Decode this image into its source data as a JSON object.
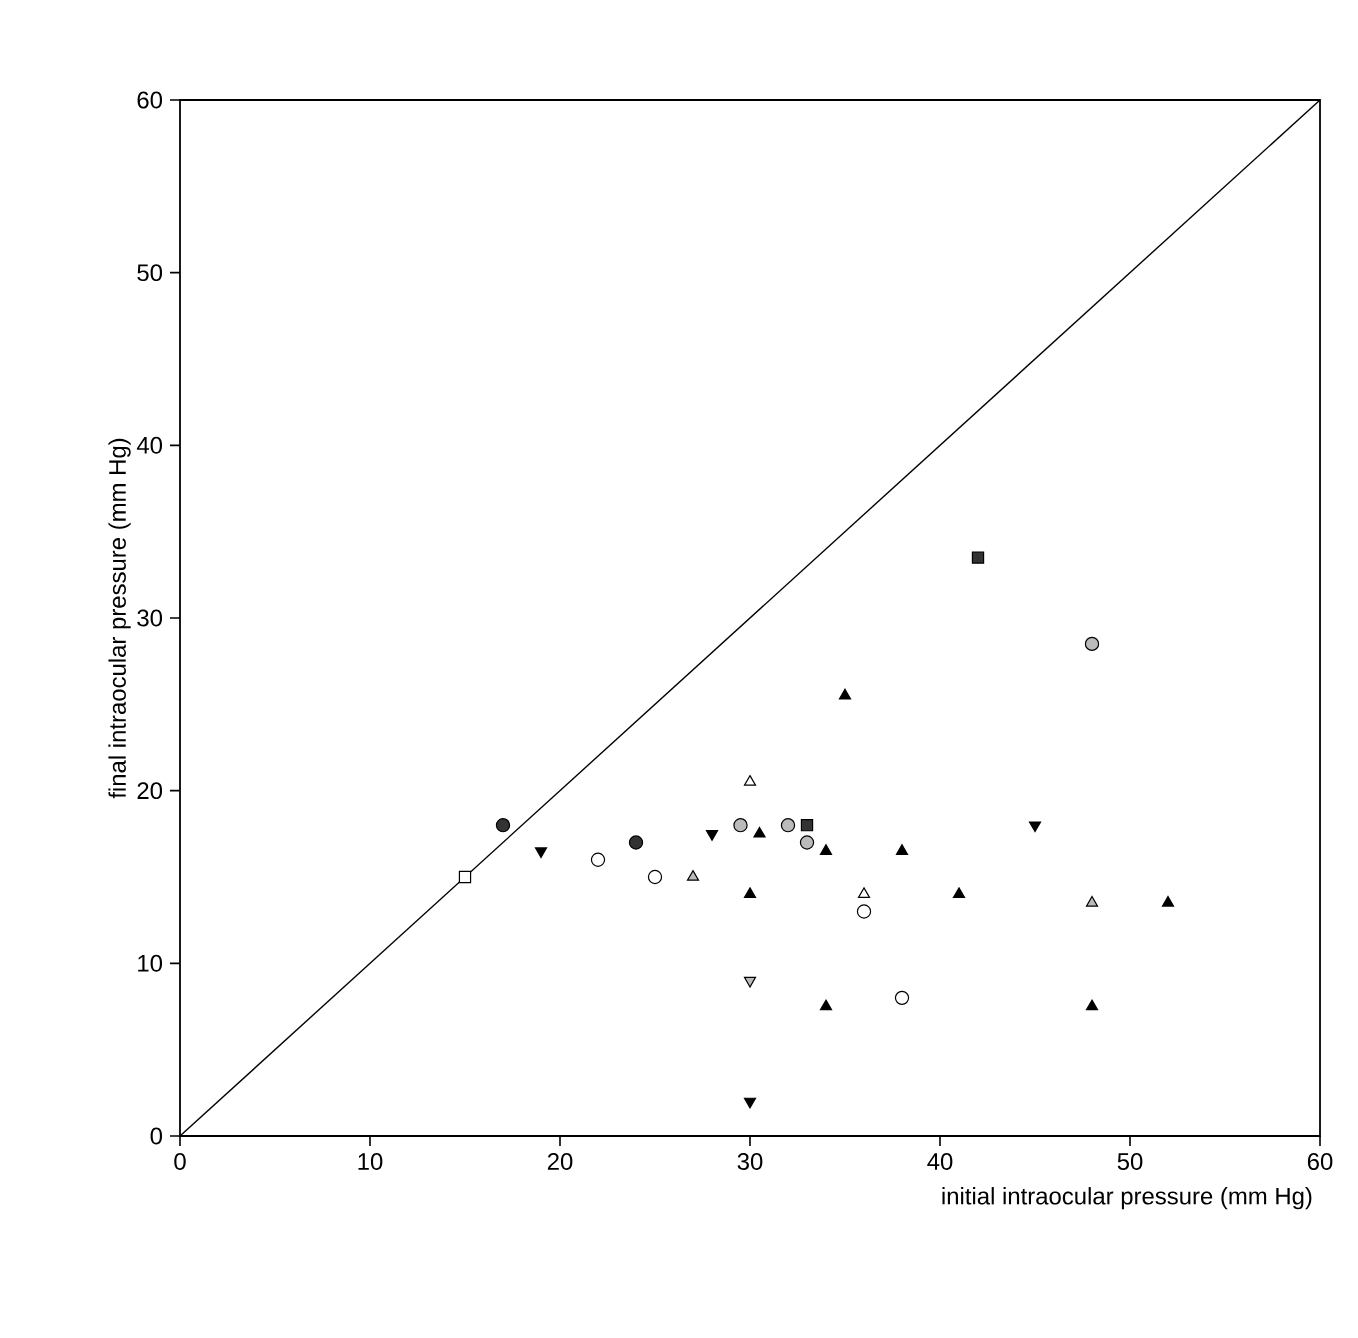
{
  "chart_data": {
    "type": "scatter",
    "xlabel": "initial intraocular pressure (mm Hg)",
    "ylabel": "final intraocular pressure (mm Hg)",
    "xlim": [
      0,
      60
    ],
    "ylim": [
      0,
      60
    ],
    "xticks": [
      0,
      10,
      20,
      30,
      40,
      50,
      60
    ],
    "yticks": [
      0,
      10,
      20,
      30,
      40,
      50,
      60
    ],
    "grid": false,
    "series": [
      {
        "type": "line",
        "color": "#000000",
        "x": [
          0,
          60
        ],
        "values": [
          0,
          60
        ],
        "line_style": "solid"
      },
      {
        "color": "#000000",
        "marker": "circle-open",
        "x": [
          22,
          25,
          36,
          38
        ],
        "values": [
          16,
          15,
          13,
          8
        ]
      },
      {
        "color": "#bbbbbb",
        "marker": "circle",
        "x": [
          29.5,
          32,
          33,
          48
        ],
        "values": [
          18,
          18,
          17,
          28.5
        ]
      },
      {
        "color": "#333333",
        "marker": "circle",
        "x": [
          17,
          24
        ],
        "values": [
          18,
          17
        ]
      },
      {
        "color": "#000000",
        "marker": "square-open",
        "x": [
          15
        ],
        "values": [
          15
        ]
      },
      {
        "color": "#333333",
        "marker": "square",
        "x": [
          33,
          42
        ],
        "values": [
          18,
          33.5
        ]
      },
      {
        "color": "#000000",
        "marker": "triangle-open",
        "x": [
          30,
          36
        ],
        "values": [
          20.5,
          14
        ]
      },
      {
        "color": "#bbbbbb",
        "marker": "triangle",
        "x": [
          27,
          48
        ],
        "values": [
          15,
          13.5
        ]
      },
      {
        "color": "#000000",
        "marker": "triangle",
        "x": [
          30,
          30.5,
          34,
          34,
          35,
          38,
          41,
          48,
          52
        ],
        "values": [
          14,
          17.5,
          16.5,
          7.5,
          25.5,
          16.5,
          14,
          7.5,
          13.5
        ]
      },
      {
        "color": "#000000",
        "marker": "triangle-down",
        "x": [
          19,
          28,
          30,
          45
        ],
        "values": [
          16.5,
          17.5,
          2,
          18
        ]
      },
      {
        "color": "#bbbbbb",
        "marker": "triangle-down",
        "x": [
          30
        ],
        "values": [
          9
        ]
      }
    ]
  }
}
